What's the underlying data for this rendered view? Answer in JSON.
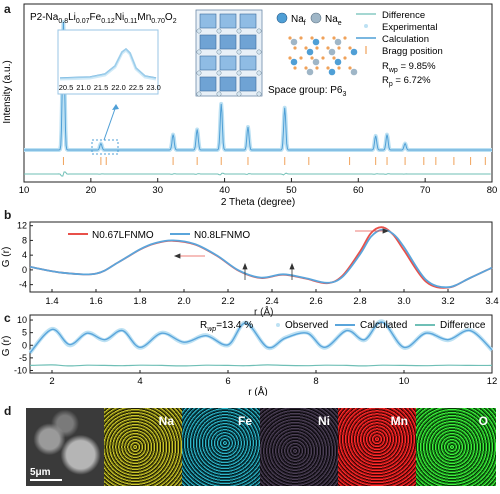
{
  "panels": {
    "a": {
      "letter": "a",
      "formula_prefix": "P2-Na",
      "formula_parts": [
        {
          "el": "Na",
          "sub": "0.8"
        },
        {
          "el": "Li",
          "sub": "0.07"
        },
        {
          "el": "Fe",
          "sub": "0.12"
        },
        {
          "el": "Ni",
          "sub": "0.11"
        },
        {
          "el": "Mn",
          "sub": "0.70"
        },
        {
          "el": "O",
          "sub": "2"
        }
      ],
      "naf_label": "Na",
      "naf_sub": "f",
      "nae_label": "Na",
      "nae_sub": "e",
      "space_group": "Space group: P6",
      "space_group_sub": "3",
      "legend": {
        "difference": "Difference",
        "experimental": "Experimental",
        "calculation": "Calculation",
        "bragg": "Bragg position",
        "rwp": "R",
        "rwp_sub": "wp",
        "rwp_val": " = 9.85%",
        "rp": "R",
        "rp_sub": "p",
        "rp_val": " = 6.72%"
      },
      "inset_ticks": [
        "20.5",
        "21.0",
        "21.5",
        "22.0",
        "22.5",
        "23.0"
      ],
      "ylabel": "Intensity (a.u.)",
      "xlabel": "2 Theta (degree)",
      "xticks": [
        "10",
        "20",
        "30",
        "40",
        "50",
        "60",
        "70",
        "80"
      ]
    },
    "b": {
      "letter": "b",
      "ylabel": "G (r)",
      "xlabel": "r (Å)",
      "yticks": [
        "12",
        "8",
        "4",
        "0",
        "-4"
      ],
      "xticks": [
        "1.4",
        "1.6",
        "1.8",
        "2.0",
        "2.2",
        "2.4",
        "2.6",
        "2.8",
        "3.0",
        "3.2",
        "3.4"
      ],
      "legend": [
        "N0.67LFNMO",
        "N0.8LFNMO"
      ]
    },
    "c": {
      "letter": "c",
      "ylabel": "G (r)",
      "xlabel": "r (Å)",
      "yticks": [
        "10",
        "5",
        "0",
        "-5",
        "-10"
      ],
      "xticks": [
        "2",
        "4",
        "6",
        "8",
        "10",
        "12"
      ],
      "rwp": "R",
      "rwp_sub": "wp",
      "rwp_val": "=13.4 %",
      "legend": [
        "Observed",
        "Calculated",
        "Difference"
      ]
    },
    "d": {
      "letter": "d",
      "scale_bar": "5μm",
      "maps": [
        "Na",
        "Fe",
        "Ni",
        "Mn",
        "O"
      ]
    }
  },
  "chart_data": [
    {
      "type": "line",
      "title": "",
      "xlabel": "2 Theta (degree)",
      "ylabel": "Intensity (a.u.)",
      "xlim": [
        10,
        80
      ],
      "peaks": [
        {
          "x": 15.9,
          "y": 100
        },
        {
          "x": 21.5,
          "y": 5
        },
        {
          "x": 32.3,
          "y": 12
        },
        {
          "x": 35.9,
          "y": 16
        },
        {
          "x": 39.5,
          "y": 36
        },
        {
          "x": 43.5,
          "y": 18
        },
        {
          "x": 49.0,
          "y": 33
        },
        {
          "x": 62.6,
          "y": 11
        },
        {
          "x": 64.3,
          "y": 12
        },
        {
          "x": 67.0,
          "y": 5
        }
      ],
      "bragg_positions": [
        15.9,
        21.5,
        22.3,
        32.3,
        35.9,
        39.5,
        43.5,
        49.0,
        52.6,
        58.7,
        62.6,
        64.3,
        67.0,
        69.8,
        71.6,
        74.3,
        76.8,
        79.0
      ],
      "series": [
        {
          "name": "Experimental"
        },
        {
          "name": "Calculation"
        },
        {
          "name": "Difference"
        },
        {
          "name": "Bragg position"
        }
      ]
    },
    {
      "type": "line",
      "xlabel": "r (Å)",
      "ylabel": "G (r)",
      "xlim": [
        1.3,
        3.4
      ],
      "ylim": [
        -6,
        13
      ],
      "x": [
        1.3,
        1.45,
        1.6,
        1.7,
        1.8,
        1.87,
        1.95,
        2.05,
        2.15,
        2.25,
        2.35,
        2.45,
        2.55,
        2.65,
        2.72,
        2.8,
        2.85,
        2.9,
        2.95,
        3.0,
        3.1,
        3.2,
        3.3,
        3.4
      ],
      "series": [
        {
          "name": "N0.67LFNMO",
          "values": [
            0.8,
            -0.8,
            -1.0,
            2.0,
            5.5,
            7.2,
            7.9,
            6.9,
            3.8,
            -0.3,
            -2.2,
            -1.3,
            -2.3,
            -3.6,
            -1.6,
            5.0,
            10.0,
            11.6,
            9.6,
            5.3,
            -3.2,
            -4.8,
            -2.2,
            0.6
          ]
        },
        {
          "name": "N0.8LFNMO",
          "values": [
            0.8,
            -0.8,
            -1.0,
            2.0,
            5.6,
            7.3,
            8.0,
            7.0,
            3.9,
            -0.2,
            -2.1,
            -1.2,
            -2.2,
            -3.5,
            -1.9,
            4.2,
            9.0,
            10.9,
            9.8,
            6.2,
            -2.7,
            -4.7,
            -2.2,
            0.6
          ]
        }
      ]
    },
    {
      "type": "line",
      "xlabel": "r (Å)",
      "ylabel": "G (r)",
      "xlim": [
        1.5,
        12
      ],
      "ylim": [
        -11,
        12
      ],
      "x": [
        1.5,
        2.0,
        2.4,
        2.8,
        3.2,
        3.6,
        4.0,
        4.5,
        5.0,
        5.5,
        6.0,
        6.4,
        6.9,
        7.3,
        7.8,
        8.2,
        8.7,
        9.1,
        9.5,
        10.0,
        10.5,
        11.0,
        11.5,
        12.0
      ],
      "series": [
        {
          "name": "Observed",
          "values": [
            -3,
            6.5,
            0,
            5,
            2,
            6,
            -1,
            5,
            1,
            4,
            0,
            9,
            -1,
            3,
            5,
            -1,
            6,
            2,
            9.5,
            -1,
            5,
            2,
            6,
            -2
          ]
        },
        {
          "name": "Calculated",
          "values": [
            -3,
            6.3,
            0.3,
            4.8,
            2.2,
            5.8,
            -0.8,
            4.8,
            1.2,
            3.8,
            0.2,
            8.8,
            -0.8,
            2.8,
            4.8,
            -0.8,
            5.8,
            2.2,
            9.2,
            -0.8,
            4.8,
            2.2,
            5.8,
            -1.8
          ]
        },
        {
          "name": "Difference",
          "values": [
            -8,
            -7.8,
            -8.2,
            -7.9,
            -8,
            -8.1,
            -7.9,
            -8,
            -8.2,
            -7.9,
            -8,
            -8.1,
            -7.8,
            -8,
            -8.1,
            -7.9,
            -8,
            -8.2,
            -7.9,
            -8,
            -8.1,
            -7.9,
            -8,
            -8
          ]
        }
      ]
    }
  ],
  "colors": {
    "exp": "#bde1f3",
    "calc": "#4f9fd6",
    "diff": "#6fbfb6",
    "bragg": "#f0a25a",
    "red": "#e8504a",
    "blue": "#5aa5db"
  }
}
